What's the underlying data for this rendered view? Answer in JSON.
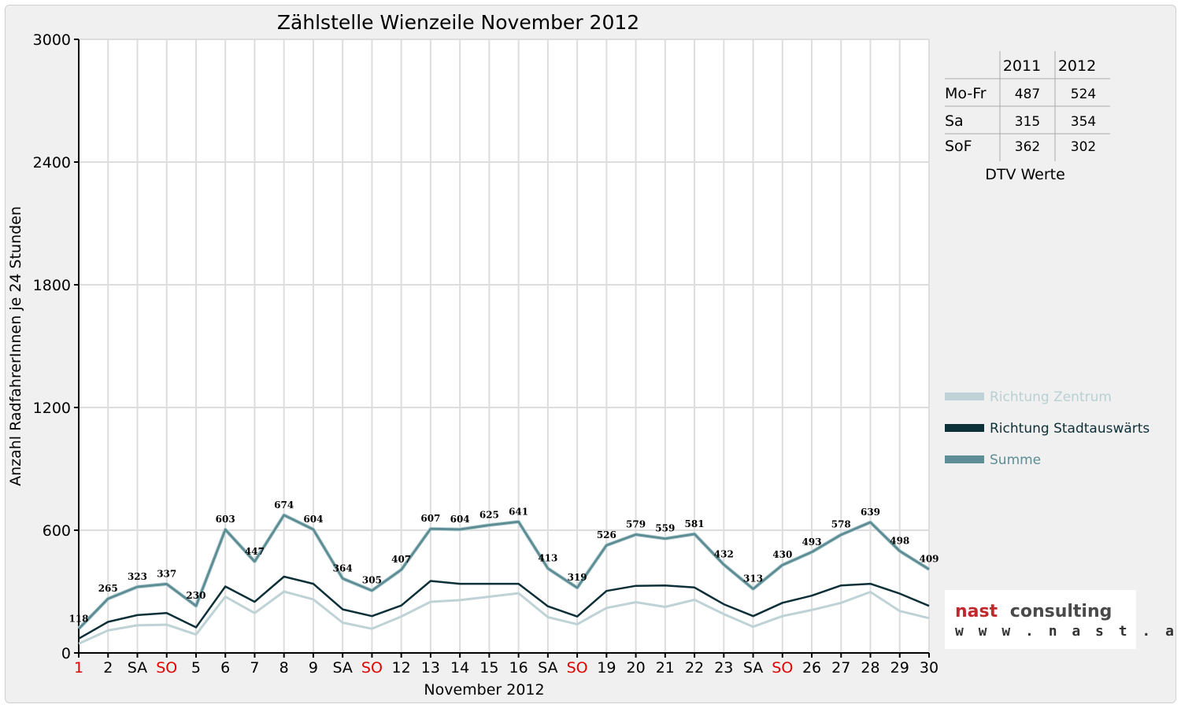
{
  "chart_data": {
    "type": "line",
    "title": "Zählstelle Wienzeile November 2012",
    "xlabel": "November 2012",
    "ylabel": "Anzahl RadfahrerInnen je 24 Stunden",
    "ylim": [
      0,
      3000
    ],
    "yticks": [
      "0",
      "600",
      "1200",
      "1800",
      "2400",
      "3000"
    ],
    "grid": true,
    "legend_position": "right",
    "categories": [
      "1",
      "2",
      "SA",
      "SO",
      "5",
      "6",
      "7",
      "8",
      "9",
      "SA",
      "SO",
      "12",
      "13",
      "14",
      "15",
      "16",
      "SA",
      "SO",
      "19",
      "20",
      "21",
      "22",
      "23",
      "SA",
      "SO",
      "26",
      "27",
      "28",
      "29",
      "30"
    ],
    "sunday_indices": [
      3,
      10,
      17,
      24
    ],
    "holiday_indices": [
      0
    ],
    "series": [
      {
        "name": "Richtung Zentrum",
        "color": "#bfd3d6",
        "values": [
          45,
          110,
          135,
          138,
          90,
          275,
          195,
          300,
          262,
          148,
          118,
          178,
          250,
          258,
          275,
          292,
          175,
          140,
          220,
          248,
          225,
          260,
          190,
          128,
          180,
          210,
          245,
          298,
          205,
          170
        ]
      },
      {
        "name": "Richtung Stadtauswärts",
        "color": "#0d3038",
        "values": [
          70,
          152,
          185,
          195,
          125,
          325,
          250,
          373,
          338,
          213,
          180,
          232,
          352,
          338,
          338,
          338,
          228,
          178,
          303,
          328,
          330,
          320,
          238,
          180,
          245,
          280,
          330,
          338,
          290,
          230
        ]
      },
      {
        "name": "Summe",
        "color": "#5d8d95",
        "values": [
          118,
          265,
          323,
          337,
          230,
          603,
          447,
          674,
          604,
          364,
          305,
          407,
          607,
          604,
          625,
          641,
          413,
          319,
          526,
          579,
          559,
          581,
          432,
          313,
          430,
          493,
          578,
          639,
          498,
          409
        ]
      }
    ],
    "data_labels": [
      "118",
      "265",
      "323",
      "337",
      "230",
      "603",
      "447",
      "674",
      "604",
      "364",
      "305",
      "407",
      "607",
      "604",
      "625",
      "641",
      "413",
      "319",
      "526",
      "579",
      "559",
      "581",
      "432",
      "313",
      "430",
      "493",
      "578",
      "639",
      "498",
      "409"
    ]
  },
  "dtv_table": {
    "caption": "DTV Werte",
    "columns": [
      "",
      "2011",
      "2012"
    ],
    "rows": [
      {
        "label": "Mo-Fr",
        "v2011": "487",
        "v2012": "524"
      },
      {
        "label": "Sa",
        "v2011": "315",
        "v2012": "354"
      },
      {
        "label": "SoF",
        "v2011": "362",
        "v2012": "302"
      }
    ]
  },
  "logo": {
    "line1_a": "nast",
    "line1_b": "consulting",
    "line2": "w w w . n a s t . a t",
    "color_a": "#c0282d",
    "color_b": "#4a4a4a"
  }
}
